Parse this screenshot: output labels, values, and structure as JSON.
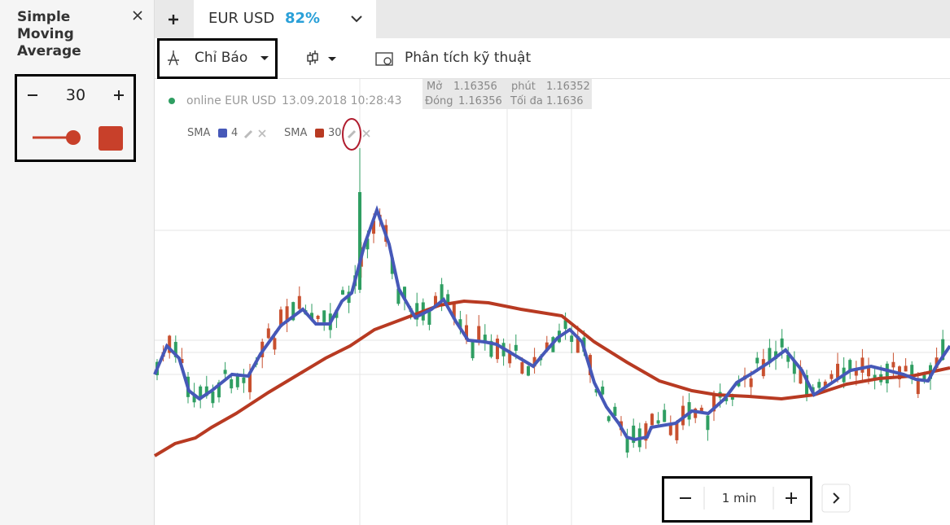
{
  "sidebar": {
    "title": "Simple Moving Average",
    "period": 30
  },
  "tab": {
    "asset": "EUR USD",
    "payout": "82%"
  },
  "toolbar": {
    "indicators": "Chỉ Báo",
    "analysis": "Phân tích kỹ thuật"
  },
  "quote": {
    "open_label": "Mở",
    "open": 1.16356,
    "minute_label": "phút",
    "minute": 1.16352,
    "close_label": "Đóng",
    "close": 1.16356,
    "max_label": "Tối đa",
    "max": 1.1636
  },
  "status": {
    "text": "online EUR USD",
    "datetime": "13.09.2018 10:28:43"
  },
  "indicators": [
    {
      "name": "SMA",
      "period": 4
    },
    {
      "name": "SMA",
      "period": 30
    }
  ],
  "timeframe": "1 min"
}
